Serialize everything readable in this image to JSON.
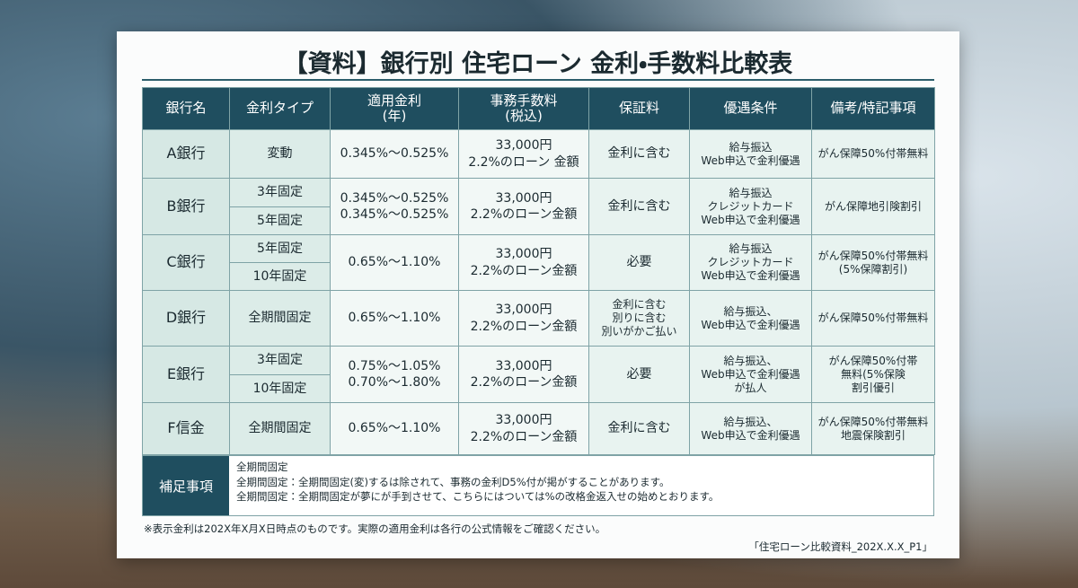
{
  "header": {
    "title": "【資料】銀行別 住宅ローン 金利・手数料比較表"
  },
  "table": {
    "columns": [
      [
        "銀行名"
      ],
      [
        "金利タイプ"
      ],
      [
        "適用金利",
        "(年)"
      ],
      [
        "事務手数料",
        "(税込)"
      ],
      [
        "保証料"
      ],
      [
        "優遇条件"
      ],
      [
        "備考/特記事項"
      ]
    ],
    "rows": [
      {
        "bank": "A銀行",
        "types": [
          "変動"
        ],
        "rates": [
          "0.345%〜0.525%"
        ],
        "fee": [
          "33,000円",
          "2.2%のローン 金額"
        ],
        "guarantee": [
          "金利に含む"
        ],
        "conditions": [
          "給与振込",
          "Web申込で金利優遇"
        ],
        "notes": [
          "がん保障50%付帯無料"
        ]
      },
      {
        "bank": "B銀行",
        "types": [
          "3年固定",
          "5年固定"
        ],
        "rates": [
          "0.345%〜0.525%",
          "0.345%〜0.525%"
        ],
        "fee": [
          "33,000円",
          "2.2%のローン金額"
        ],
        "guarantee": [
          "金利に含む"
        ],
        "conditions": [
          "給与振込",
          "クレジットカード",
          "Web申込で金利優遇"
        ],
        "notes": [
          "がん保障地引険割引"
        ]
      },
      {
        "bank": "C銀行",
        "types": [
          "5年固定",
          "10年固定"
        ],
        "rates": [
          "0.65%〜1.10%"
        ],
        "fee": [
          "33,000円",
          "2.2%のローン金額"
        ],
        "guarantee": [
          "必要"
        ],
        "conditions": [
          "給与振込",
          "クレジットカード",
          "Web申込で金利優遇"
        ],
        "notes": [
          "がん保障50%付帯無料",
          "(5%保障割引)"
        ]
      },
      {
        "bank": "D銀行",
        "types": [
          "全期間固定"
        ],
        "rates": [
          "0.65%〜1.10%"
        ],
        "fee": [
          "33,000円",
          "2.2%のローン金額"
        ],
        "guarantee": [
          "金利に含む",
          "別りに含む",
          "別いがかご払い"
        ],
        "conditions": [
          "給与振込、",
          "Web申込で金利優遇"
        ],
        "notes": [
          "がん保障50%付帯無料"
        ]
      },
      {
        "bank": "E銀行",
        "types": [
          "3年固定",
          "10年固定"
        ],
        "rates": [
          "0.75%〜1.05%",
          "0.70%〜1.80%"
        ],
        "fee": [
          "33,000円",
          "2.2%のローン金額"
        ],
        "guarantee": [
          "必要"
        ],
        "conditions": [
          "給与振込、",
          "Web申込で金利優遇",
          "が払人"
        ],
        "notes": [
          "がん保障50%付帯",
          "無料(5%保険",
          "割引優引"
        ]
      },
      {
        "bank": "F信金",
        "types": [
          "全期間固定"
        ],
        "rates": [
          "0.65%〜1.10%"
        ],
        "fee": [
          "33,000円",
          "2.2%のローン金額"
        ],
        "guarantee": [
          "金利に含む"
        ],
        "conditions": [
          "給与振込、",
          "Web申込で金利優遇"
        ],
        "notes": [
          "がん保障50%付帯無料",
          "地震保険割引"
        ]
      }
    ]
  },
  "supplement": {
    "label": "補足事項",
    "lines": [
      "全期間固定",
      "全期間固定：全期間固定(変)するは除されて、事務の金利D5%付が掲がすることがあります。",
      "全期間固定：全期間固定が夢にが手到させて、こちらにはついては%の改格金返入せの始めとおります。"
    ]
  },
  "footnote": "※表示金利は202X年X月X日時点のものです。実際の適用金利は各行の公式情報をご確認ください。",
  "file_label": "「住宅ローン比較資料_202X.X.X_P1」"
}
